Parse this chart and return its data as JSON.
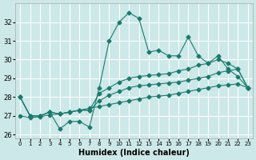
{
  "xlabel": "Humidex (Indice chaleur)",
  "bg_color": "#cce8e8",
  "line_color": "#1a7a6e",
  "grid_color": "#ffffff",
  "series": {
    "main": [
      28,
      27,
      27,
      27.2,
      26.3,
      26.7,
      26.7,
      26.4,
      28.5,
      31.0,
      32.0,
      32.5,
      32.2,
      30.4,
      30.5,
      30.2,
      30.2,
      31.2,
      30.2,
      29.8,
      30.2,
      29.5,
      29.1,
      28.5
    ],
    "line2": [
      28,
      27,
      27,
      27.2,
      27.1,
      27.2,
      27.3,
      27.3,
      27.8,
      28.1,
      28.3,
      28.5,
      28.6,
      28.65,
      28.7,
      28.75,
      28.8,
      28.9,
      29.0,
      29.1,
      29.3,
      29.4,
      29.5,
      28.5
    ],
    "line3": [
      28,
      27,
      27,
      27.2,
      27.1,
      27.2,
      27.3,
      27.3,
      28.2,
      28.5,
      28.8,
      29.0,
      29.1,
      29.15,
      29.2,
      29.25,
      29.4,
      29.5,
      29.7,
      29.8,
      30.0,
      29.8,
      29.5,
      28.5
    ],
    "line4": [
      27.0,
      26.9,
      26.95,
      27.05,
      27.1,
      27.2,
      27.3,
      27.4,
      27.5,
      27.6,
      27.7,
      27.8,
      27.9,
      28.0,
      28.05,
      28.1,
      28.2,
      28.3,
      28.4,
      28.5,
      28.6,
      28.65,
      28.7,
      28.5
    ]
  },
  "x": [
    0,
    1,
    2,
    3,
    4,
    5,
    6,
    7,
    8,
    9,
    10,
    11,
    12,
    13,
    14,
    15,
    16,
    17,
    18,
    19,
    20,
    21,
    22,
    23
  ],
  "ylim": [
    25.8,
    33.0
  ],
  "yticks": [
    26,
    27,
    28,
    29,
    30,
    31,
    32
  ],
  "xtick_labels": [
    "0",
    "1",
    "2",
    "3",
    "4",
    "5",
    "6",
    "7",
    "8",
    "9",
    "10",
    "11",
    "12",
    "13",
    "14",
    "15",
    "16",
    "17",
    "18",
    "19",
    "20",
    "21",
    "22",
    "23"
  ]
}
